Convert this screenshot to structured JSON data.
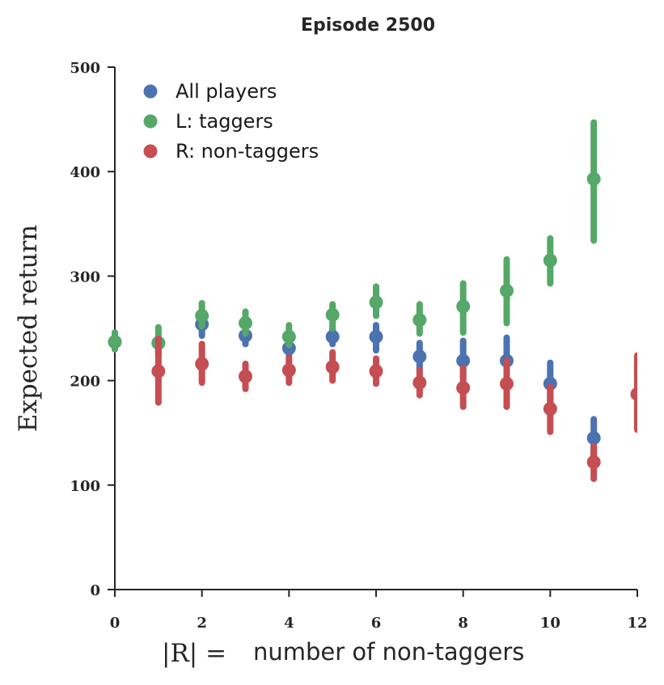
{
  "chart_data": {
    "type": "scatter",
    "title": "Episode 2500",
    "ylabel": "Expected return",
    "xlabel_math": "|R| =",
    "xlabel_text": "number of non-taggers",
    "xlim": [
      0,
      12
    ],
    "ylim": [
      0,
      500
    ],
    "x_ticks": [
      0,
      2,
      4,
      6,
      8,
      10,
      12
    ],
    "y_ticks": [
      0,
      100,
      200,
      300,
      400,
      500
    ],
    "legend_position": "top-left",
    "grid": false,
    "series": [
      {
        "name": "All players",
        "color": "#4c72b0",
        "points": [
          {
            "x": 0,
            "y": 237,
            "lo": 230,
            "hi": 246
          },
          {
            "x": 1,
            "y": 236,
            "lo": 230,
            "hi": 243
          },
          {
            "x": 2,
            "y": 254,
            "lo": 243,
            "hi": 265
          },
          {
            "x": 3,
            "y": 243,
            "lo": 235,
            "hi": 251
          },
          {
            "x": 4,
            "y": 231,
            "lo": 224,
            "hi": 239
          },
          {
            "x": 5,
            "y": 242,
            "lo": 235,
            "hi": 250
          },
          {
            "x": 6,
            "y": 242,
            "lo": 229,
            "hi": 253
          },
          {
            "x": 7,
            "y": 223,
            "lo": 210,
            "hi": 236
          },
          {
            "x": 8,
            "y": 219,
            "lo": 201,
            "hi": 238
          },
          {
            "x": 9,
            "y": 219,
            "lo": 196,
            "hi": 241
          },
          {
            "x": 10,
            "y": 197,
            "lo": 178,
            "hi": 217
          },
          {
            "x": 11,
            "y": 145,
            "lo": 128,
            "hi": 163
          }
        ]
      },
      {
        "name": "L: taggers",
        "color": "#55a868",
        "points": [
          {
            "x": 0,
            "y": 237,
            "lo": 230,
            "hi": 246
          },
          {
            "x": 1,
            "y": 236,
            "lo": 225,
            "hi": 251
          },
          {
            "x": 2,
            "y": 262,
            "lo": 252,
            "hi": 274
          },
          {
            "x": 3,
            "y": 255,
            "lo": 245,
            "hi": 266
          },
          {
            "x": 4,
            "y": 242,
            "lo": 234,
            "hi": 253
          },
          {
            "x": 5,
            "y": 263,
            "lo": 250,
            "hi": 273
          },
          {
            "x": 6,
            "y": 275,
            "lo": 262,
            "hi": 290
          },
          {
            "x": 7,
            "y": 258,
            "lo": 245,
            "hi": 273
          },
          {
            "x": 8,
            "y": 271,
            "lo": 246,
            "hi": 293
          },
          {
            "x": 9,
            "y": 286,
            "lo": 255,
            "hi": 316
          },
          {
            "x": 10,
            "y": 315,
            "lo": 293,
            "hi": 336
          },
          {
            "x": 11,
            "y": 393,
            "lo": 334,
            "hi": 447
          }
        ]
      },
      {
        "name": "R: non-taggers",
        "color": "#c44e52",
        "points": [
          {
            "x": 1,
            "y": 209,
            "lo": 179,
            "hi": 240
          },
          {
            "x": 2,
            "y": 216,
            "lo": 198,
            "hi": 235
          },
          {
            "x": 3,
            "y": 204,
            "lo": 192,
            "hi": 216
          },
          {
            "x": 4,
            "y": 210,
            "lo": 198,
            "hi": 222
          },
          {
            "x": 5,
            "y": 213,
            "lo": 200,
            "hi": 227
          },
          {
            "x": 6,
            "y": 209,
            "lo": 197,
            "hi": 221
          },
          {
            "x": 7,
            "y": 198,
            "lo": 186,
            "hi": 210
          },
          {
            "x": 8,
            "y": 193,
            "lo": 175,
            "hi": 212
          },
          {
            "x": 9,
            "y": 197,
            "lo": 175,
            "hi": 219
          },
          {
            "x": 10,
            "y": 173,
            "lo": 151,
            "hi": 194
          },
          {
            "x": 11,
            "y": 122,
            "lo": 106,
            "hi": 137
          },
          {
            "x": 12,
            "y": 187,
            "lo": 153,
            "hi": 224
          }
        ]
      }
    ]
  }
}
